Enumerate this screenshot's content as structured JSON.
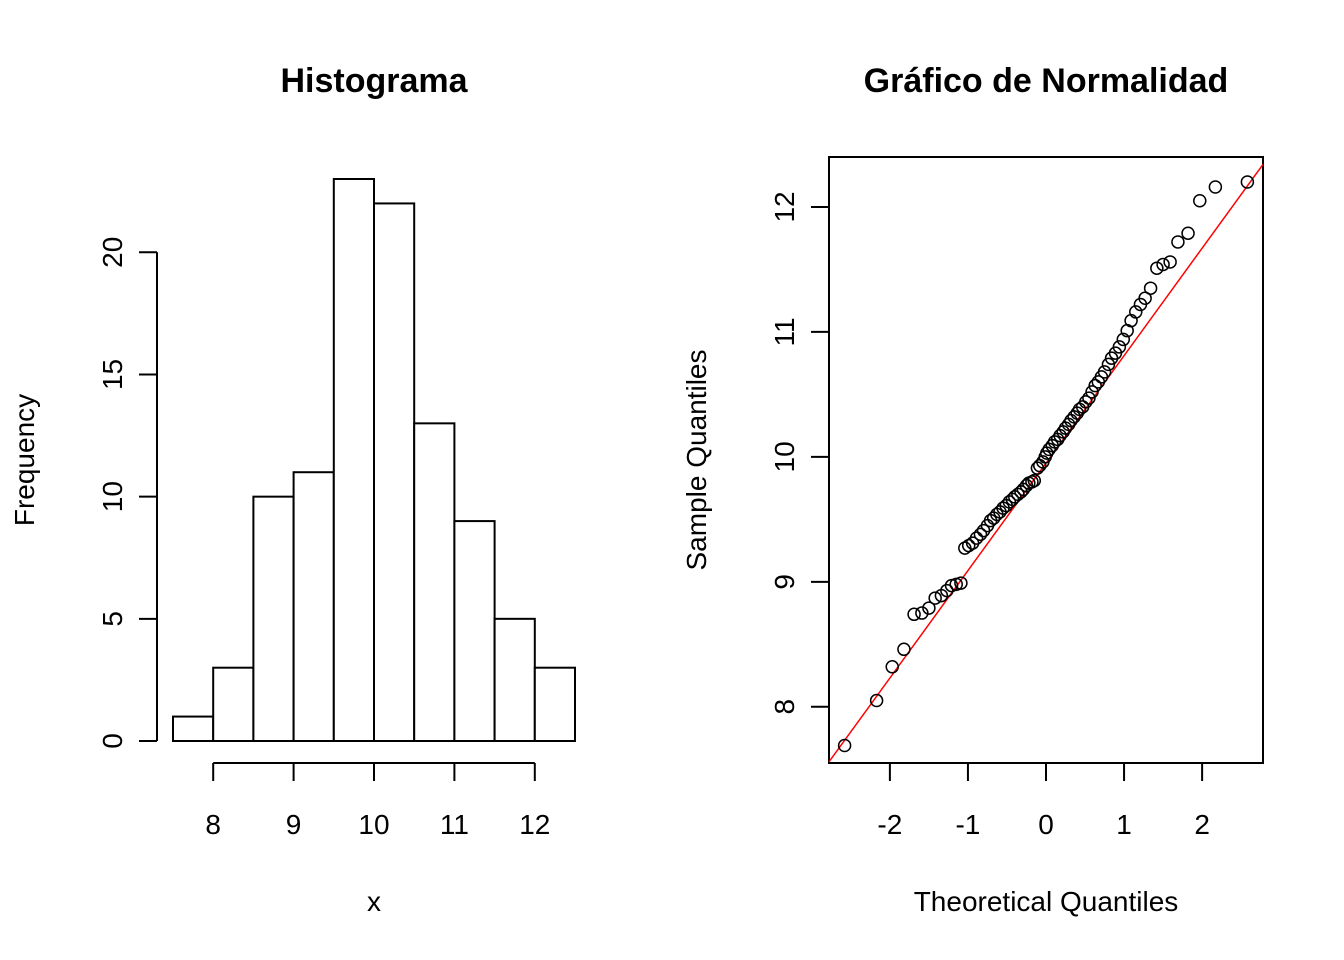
{
  "chart_data": [
    {
      "type": "bar",
      "subtype": "histogram",
      "title": "Histograma",
      "xlabel": "x",
      "ylabel": "Frequency",
      "bin_edges": [
        7.5,
        8.0,
        8.5,
        9.0,
        9.5,
        10.0,
        10.5,
        11.0,
        11.5,
        12.0,
        12.5
      ],
      "values": [
        1,
        3,
        10,
        11,
        23,
        22,
        13,
        9,
        5,
        3
      ],
      "xticks": [
        8,
        9,
        10,
        11,
        12
      ],
      "yticks": [
        0,
        5,
        10,
        15,
        20
      ],
      "xlim": [
        7.5,
        12.5
      ],
      "ylim": [
        0,
        23
      ],
      "colors": {
        "bar_fill": "#ffffff",
        "bar_stroke": "#000000"
      }
    },
    {
      "type": "scatter",
      "subtype": "qq-normal",
      "title": "Gráfico de Normalidad",
      "xlabel": "Theoretical Quantiles",
      "ylabel": "Sample Quantiles",
      "xticks": [
        -2,
        -1,
        0,
        1,
        2
      ],
      "xtick_labels": [
        "-2",
        "-1",
        "0",
        "1",
        "2"
      ],
      "yticks": [
        8,
        9,
        10,
        11,
        12
      ],
      "xlim": [
        -2.78,
        2.78
      ],
      "ylim": [
        7.55,
        12.4
      ],
      "reference_line": {
        "points": [
          [
            -2.5,
            7.8
          ],
          [
            2.5,
            12.1
          ]
        ],
        "color": "#ff0000"
      },
      "points": [
        [
          -2.58,
          7.69
        ],
        [
          -2.17,
          8.05
        ],
        [
          -1.97,
          8.32
        ],
        [
          -1.82,
          8.46
        ],
        [
          -1.69,
          8.74
        ],
        [
          -1.59,
          8.75
        ],
        [
          -1.5,
          8.79
        ],
        [
          -1.42,
          8.87
        ],
        [
          -1.34,
          8.89
        ],
        [
          -1.27,
          8.93
        ],
        [
          -1.21,
          8.97
        ],
        [
          -1.15,
          8.98
        ],
        [
          -1.09,
          8.99
        ],
        [
          -1.04,
          9.27
        ],
        [
          -0.99,
          9.29
        ],
        [
          -0.94,
          9.31
        ],
        [
          -0.89,
          9.35
        ],
        [
          -0.84,
          9.38
        ],
        [
          -0.8,
          9.41
        ],
        [
          -0.75,
          9.45
        ],
        [
          -0.71,
          9.49
        ],
        [
          -0.67,
          9.51
        ],
        [
          -0.63,
          9.54
        ],
        [
          -0.59,
          9.56
        ],
        [
          -0.55,
          9.59
        ],
        [
          -0.51,
          9.61
        ],
        [
          -0.47,
          9.64
        ],
        [
          -0.43,
          9.66
        ],
        [
          -0.4,
          9.68
        ],
        [
          -0.36,
          9.7
        ],
        [
          -0.32,
          9.72
        ],
        [
          -0.29,
          9.74
        ],
        [
          -0.25,
          9.77
        ],
        [
          -0.22,
          9.79
        ],
        [
          -0.18,
          9.8
        ],
        [
          -0.15,
          9.81
        ],
        [
          -0.11,
          9.91
        ],
        [
          -0.08,
          9.93
        ],
        [
          -0.04,
          9.96
        ],
        [
          -0.01,
          10.0
        ],
        [
          0.01,
          10.03
        ],
        [
          0.04,
          10.06
        ],
        [
          0.08,
          10.09
        ],
        [
          0.11,
          10.12
        ],
        [
          0.15,
          10.14
        ],
        [
          0.18,
          10.17
        ],
        [
          0.22,
          10.2
        ],
        [
          0.25,
          10.23
        ],
        [
          0.29,
          10.26
        ],
        [
          0.32,
          10.29
        ],
        [
          0.36,
          10.32
        ],
        [
          0.4,
          10.35
        ],
        [
          0.43,
          10.38
        ],
        [
          0.47,
          10.4
        ],
        [
          0.51,
          10.44
        ],
        [
          0.55,
          10.47
        ],
        [
          0.59,
          10.52
        ],
        [
          0.63,
          10.57
        ],
        [
          0.67,
          10.6
        ],
        [
          0.71,
          10.64
        ],
        [
          0.75,
          10.68
        ],
        [
          0.8,
          10.74
        ],
        [
          0.84,
          10.79
        ],
        [
          0.89,
          10.83
        ],
        [
          0.94,
          10.88
        ],
        [
          0.99,
          10.94
        ],
        [
          1.04,
          11.01
        ],
        [
          1.09,
          11.09
        ],
        [
          1.15,
          11.16
        ],
        [
          1.21,
          11.22
        ],
        [
          1.27,
          11.27
        ],
        [
          1.34,
          11.35
        ],
        [
          1.42,
          11.51
        ],
        [
          1.5,
          11.54
        ],
        [
          1.59,
          11.56
        ],
        [
          1.69,
          11.72
        ],
        [
          1.82,
          11.79
        ],
        [
          1.97,
          12.05
        ],
        [
          2.17,
          12.16
        ],
        [
          2.58,
          12.2
        ]
      ],
      "colors": {
        "point_stroke": "#000000",
        "line": "#ff0000"
      }
    }
  ]
}
